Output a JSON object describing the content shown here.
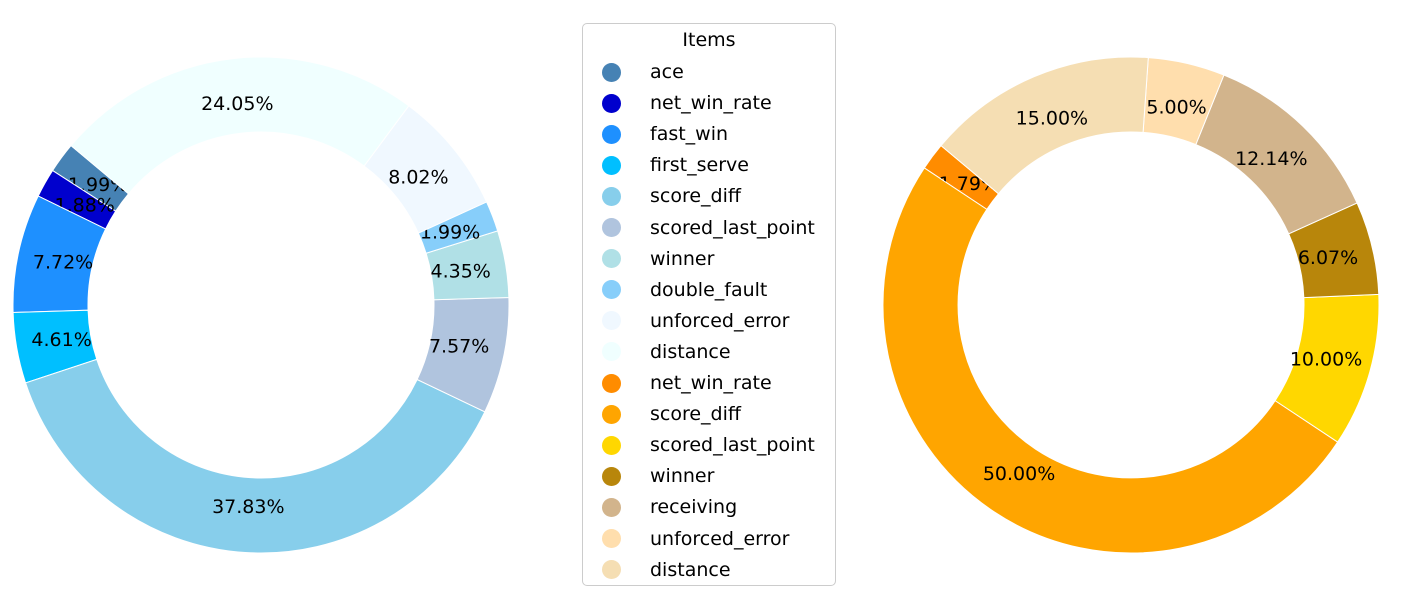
{
  "legend": {
    "title": "Items",
    "items": [
      {
        "label": "ace",
        "color": "#4682B4"
      },
      {
        "label": "net_win_rate",
        "color": "#0000CD"
      },
      {
        "label": "fast_win",
        "color": "#1E90FF"
      },
      {
        "label": "first_serve",
        "color": "#00BFFF"
      },
      {
        "label": "score_diff",
        "color": "#87CEEB"
      },
      {
        "label": "scored_last_point",
        "color": "#B0C4DE"
      },
      {
        "label": "winner",
        "color": "#B0E0E6"
      },
      {
        "label": "double_fault",
        "color": "#87CEFA"
      },
      {
        "label": "unforced_error",
        "color": "#F0F8FF"
      },
      {
        "label": "distance",
        "color": "#F0FFFF"
      },
      {
        "label": "net_win_rate",
        "color": "#FF8C00"
      },
      {
        "label": "score_diff",
        "color": "#FFA500"
      },
      {
        "label": "scored_last_point",
        "color": "#FFD700"
      },
      {
        "label": "winner",
        "color": "#B8860B"
      },
      {
        "label": "receiving",
        "color": "#D2B48C"
      },
      {
        "label": "unforced_error",
        "color": "#FFDEAD"
      },
      {
        "label": "distance",
        "color": "#F5DEB3"
      }
    ]
  },
  "chart_data": [
    {
      "type": "pie",
      "donut": true,
      "start_angle_deg": 140,
      "direction": "counterclockwise",
      "categories": [
        "ace",
        "net_win_rate",
        "fast_win",
        "first_serve",
        "score_diff",
        "scored_last_point",
        "winner",
        "double_fault",
        "unforced_error",
        "distance"
      ],
      "values": [
        1.99,
        1.88,
        7.72,
        4.61,
        37.83,
        7.57,
        4.35,
        1.99,
        8.02,
        24.05
      ],
      "labels": [
        "1.99%",
        "1.88%",
        "7.72%",
        "4.61%",
        "37.83%",
        "7.57%",
        "4.35%",
        "1.99%",
        "8.02%",
        "24.05%"
      ],
      "colors": [
        "#4682B4",
        "#0000CD",
        "#1E90FF",
        "#00BFFF",
        "#87CEEB",
        "#B0C4DE",
        "#B0E0E6",
        "#87CEFA",
        "#F0F8FF",
        "#F0FFFF"
      ]
    },
    {
      "type": "pie",
      "donut": true,
      "start_angle_deg": 140,
      "direction": "counterclockwise",
      "categories": [
        "net_win_rate",
        "score_diff",
        "scored_last_point",
        "winner",
        "receiving",
        "unforced_error",
        "distance"
      ],
      "values": [
        1.79,
        50.0,
        10.0,
        6.07,
        12.14,
        5.0,
        15.0
      ],
      "labels": [
        "1.79%",
        "50.00%",
        "10.00%",
        "6.07%",
        "12.14%",
        "5.00%",
        "15.00%"
      ],
      "colors": [
        "#FF8C00",
        "#FFA500",
        "#FFD700",
        "#B8860B",
        "#D2B48C",
        "#FFDEAD",
        "#F5DEB3"
      ]
    }
  ]
}
